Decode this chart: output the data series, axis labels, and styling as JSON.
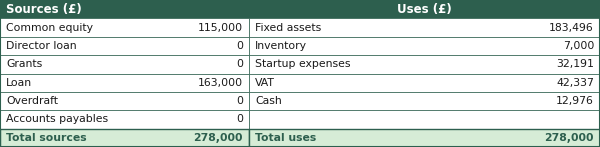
{
  "header_bg": "#2d5f4e",
  "header_text_color": "#ffffff",
  "row_bg": "#ffffff",
  "total_bg": "#d6ecd6",
  "total_text_color": "#2d5f4e",
  "border_color": "#2d5f4e",
  "text_color": "#1a1a1a",
  "header_left": "Sources (£)",
  "header_right": "Uses (£)",
  "sources": [
    [
      "Common equity",
      "115,000"
    ],
    [
      "Director loan",
      "0"
    ],
    [
      "Grants",
      "0"
    ],
    [
      "Loan",
      "163,000"
    ],
    [
      "Overdraft",
      "0"
    ],
    [
      "Accounts payables",
      "0"
    ]
  ],
  "uses": [
    [
      "Fixed assets",
      "183,496"
    ],
    [
      "Inventory",
      "7,000"
    ],
    [
      "Startup expenses",
      "32,191"
    ],
    [
      "VAT",
      "42,337"
    ],
    [
      "Cash",
      "12,976"
    ],
    [
      "",
      ""
    ]
  ],
  "total_sources_label": "Total sources",
  "total_sources_value": "278,000",
  "total_uses_label": "Total uses",
  "total_uses_value": "278,000",
  "font_size": 7.8,
  "header_font_size": 8.5,
  "col_split": 0.415,
  "col_src_val": 0.408,
  "col_use_lbl": 0.418,
  "col_use_val": 0.998
}
